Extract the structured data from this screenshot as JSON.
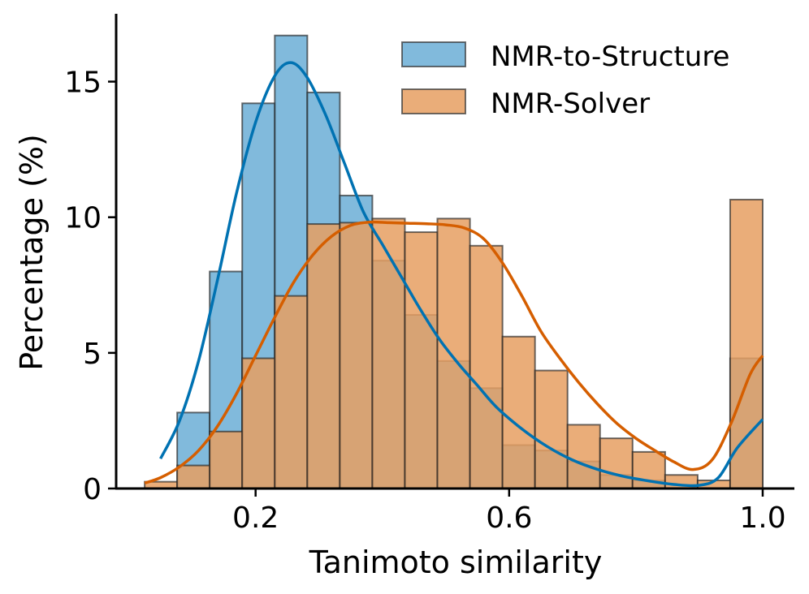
{
  "chart_data": {
    "type": "bar",
    "subtype": "overlapping-histogram-with-kde",
    "title": "",
    "xlabel": "Tanimoto similarity",
    "ylabel": "Percentage (%)",
    "xlim": [
      -0.02,
      1.05
    ],
    "ylim": [
      0,
      17.5
    ],
    "xticks": [
      0.2,
      0.6,
      1.0
    ],
    "xtick_labels": [
      "0.2",
      "0.6",
      "1.0"
    ],
    "yticks": [
      0,
      5,
      10,
      15
    ],
    "ytick_labels": [
      "0",
      "5",
      "10",
      "15"
    ],
    "bin_edges": [
      0.025,
      0.0763,
      0.1276,
      0.1789,
      0.2303,
      0.2816,
      0.3329,
      0.3842,
      0.4355,
      0.4868,
      0.5382,
      0.5895,
      0.6408,
      0.6921,
      0.7434,
      0.7947,
      0.8461,
      0.8974,
      0.9487,
      1.0
    ],
    "legend_position": "top-right",
    "series": [
      {
        "name": "NMR-to-Structure",
        "color": "#0072b2",
        "fill": "#6baed6",
        "values": [
          0,
          2.8,
          8.0,
          14.2,
          16.7,
          14.6,
          10.8,
          8.4,
          6.4,
          4.7,
          3.7,
          1.6,
          1.4,
          1.0,
          0.5,
          0.3,
          0,
          0,
          4.8
        ],
        "kde": {
          "x": [
            0.05,
            0.08,
            0.11,
            0.14,
            0.17,
            0.2,
            0.23,
            0.255,
            0.28,
            0.31,
            0.34,
            0.37,
            0.4,
            0.43,
            0.46,
            0.49,
            0.52,
            0.55,
            0.58,
            0.62,
            0.66,
            0.7,
            0.74,
            0.78,
            0.82,
            0.86,
            0.9,
            0.93,
            0.96,
            1.0
          ],
          "y": [
            1.1,
            2.5,
            4.7,
            7.7,
            10.9,
            13.5,
            15.2,
            15.7,
            15.2,
            13.8,
            12.0,
            10.2,
            9.0,
            7.8,
            6.6,
            5.5,
            4.6,
            3.8,
            3.0,
            2.2,
            1.55,
            1.05,
            0.7,
            0.45,
            0.28,
            0.15,
            0.12,
            0.4,
            1.5,
            2.55
          ]
        }
      },
      {
        "name": "NMR-Solver",
        "color": "#d55e00",
        "fill": "#e69f62",
        "values": [
          0.25,
          0.85,
          2.1,
          4.8,
          7.1,
          9.75,
          9.8,
          9.95,
          9.45,
          9.95,
          8.95,
          5.6,
          4.35,
          2.35,
          1.85,
          1.35,
          0.5,
          0.3,
          10.65
        ],
        "kde": {
          "x": [
            0.025,
            0.05,
            0.08,
            0.11,
            0.14,
            0.17,
            0.2,
            0.23,
            0.26,
            0.29,
            0.32,
            0.35,
            0.38,
            0.41,
            0.44,
            0.47,
            0.5,
            0.53,
            0.56,
            0.59,
            0.62,
            0.65,
            0.68,
            0.71,
            0.74,
            0.77,
            0.8,
            0.83,
            0.86,
            0.89,
            0.92,
            0.95,
            0.98,
            1.0
          ],
          "y": [
            0.2,
            0.4,
            0.8,
            1.4,
            2.3,
            3.5,
            4.9,
            6.3,
            7.6,
            8.6,
            9.3,
            9.7,
            9.82,
            9.8,
            9.78,
            9.76,
            9.72,
            9.6,
            9.2,
            8.3,
            7.1,
            5.8,
            4.8,
            3.9,
            3.1,
            2.4,
            1.85,
            1.4,
            0.98,
            0.7,
            1.05,
            2.4,
            4.2,
            4.9
          ]
        }
      }
    ]
  }
}
